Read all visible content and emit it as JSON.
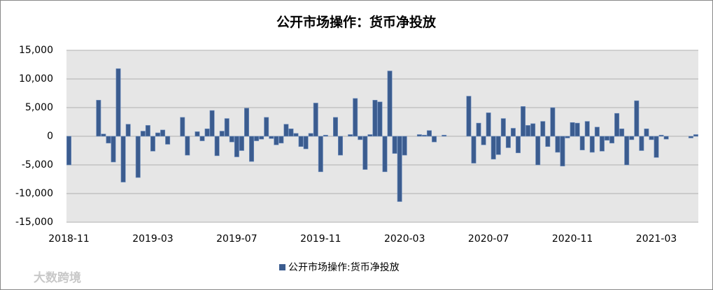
{
  "chart_data": {
    "type": "bar",
    "title": "公开市场操作：货币净投放",
    "legend_label": "公开市场操作:货币净投放",
    "watermark": "大数跨境",
    "color": "#3b5c8f",
    "grid": true,
    "categories": [
      "2018-11",
      null,
      null,
      null,
      null,
      null,
      null,
      null,
      null,
      null,
      null,
      null,
      null,
      null,
      null,
      null,
      null,
      "2019-03",
      null,
      null,
      null,
      null,
      null,
      null,
      null,
      null,
      null,
      null,
      null,
      null,
      null,
      null,
      null,
      null,
      "2019-07",
      null,
      null,
      null,
      null,
      null,
      null,
      null,
      null,
      null,
      null,
      null,
      null,
      null,
      null,
      null,
      null,
      "2019-11",
      null,
      null,
      null,
      null,
      null,
      null,
      null,
      null,
      null,
      null,
      null,
      null,
      null,
      null,
      null,
      null,
      "2020-03",
      null,
      null,
      null,
      null,
      null,
      null,
      null,
      null,
      null,
      null,
      null,
      null,
      null,
      null,
      null,
      null,
      "2020-07",
      null,
      null,
      null,
      null,
      null,
      null,
      null,
      null,
      null,
      null,
      null,
      null,
      null,
      null,
      null,
      null,
      "2020-11",
      null,
      null,
      null,
      null,
      null,
      null,
      null,
      null,
      null,
      null,
      null,
      null,
      null,
      null,
      null,
      null,
      "2021-03",
      null,
      null,
      null,
      null,
      null,
      null,
      null,
      null
    ],
    "values": [
      -5000,
      null,
      null,
      null,
      null,
      null,
      6300,
      400,
      -1200,
      -4500,
      11800,
      -8000,
      2100,
      null,
      -7200,
      900,
      1900,
      -2600,
      600,
      1100,
      -1400,
      null,
      null,
      3300,
      -3300,
      null,
      800,
      -800,
      1300,
      4500,
      -3400,
      900,
      3100,
      -1000,
      -3600,
      -2500,
      4900,
      -4400,
      -800,
      -500,
      3300,
      -400,
      -1500,
      -1200,
      2100,
      1300,
      500,
      -1800,
      -2200,
      500,
      5800,
      -6200,
      200,
      null,
      3300,
      -3300,
      null,
      300,
      6600,
      -600,
      -5800,
      300,
      6300,
      6000,
      -6200,
      11400,
      -3000,
      -11400,
      -3300,
      null,
      null,
      300,
      200,
      1000,
      -1000,
      null,
      200,
      null,
      null,
      null,
      null,
      7000,
      -4700,
      2300,
      -1500,
      4100,
      -4000,
      -3200,
      3100,
      -2000,
      1400,
      -2900,
      5200,
      1900,
      2200,
      -5000,
      2600,
      -1800,
      5000,
      -2800,
      -5200,
      -300,
      2400,
      2300,
      -2400,
      2600,
      -2800,
      1600,
      -2600,
      -700,
      -1200,
      4000,
      1300,
      -5000,
      -600,
      6200,
      -2500,
      1300,
      -600,
      -3700,
      200,
      -500,
      null,
      null,
      null,
      null,
      -300,
      300
    ],
    "ylim": [
      -15000,
      15000
    ],
    "yticks": [
      {
        "value": -15000,
        "label": "-15,000"
      },
      {
        "value": -10000,
        "label": "-10,000"
      },
      {
        "value": -5000,
        "label": "-5,000"
      },
      0,
      {
        "value": 5000,
        "label": "5,000"
      },
      {
        "value": 10000,
        "label": "10,000"
      },
      {
        "value": 15000,
        "label": "15,000"
      }
    ]
  }
}
